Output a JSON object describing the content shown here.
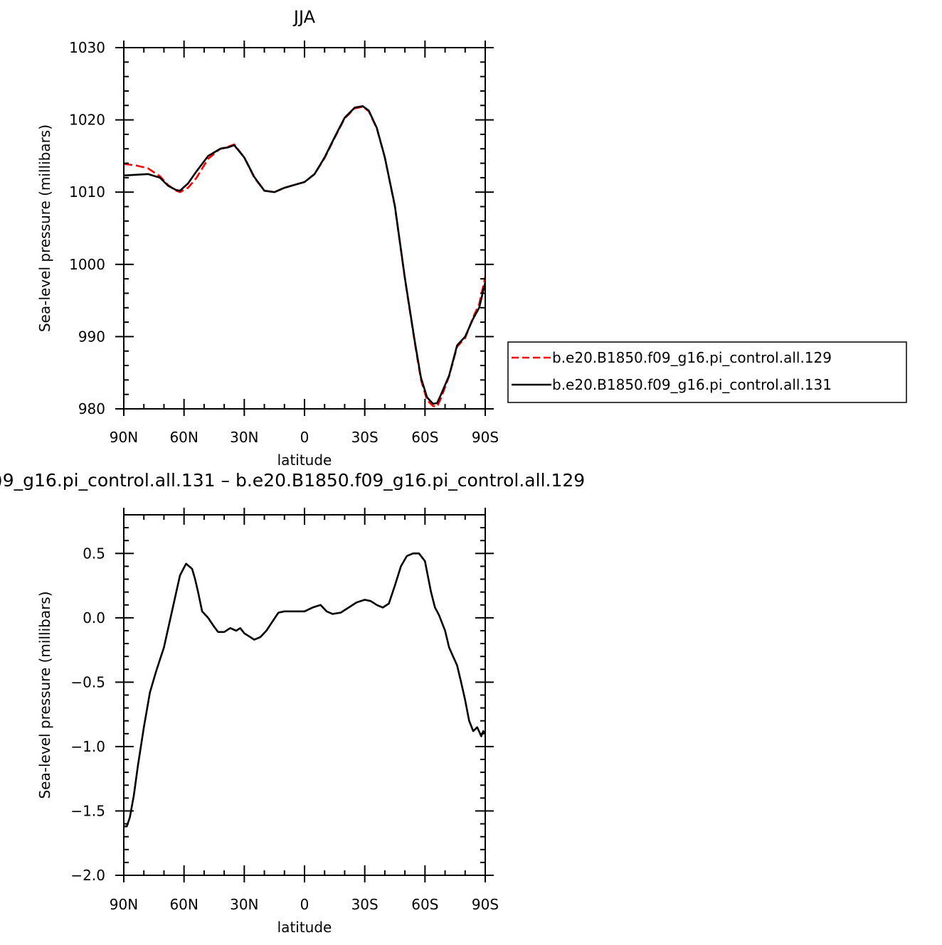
{
  "chart_data": [
    {
      "type": "line",
      "title": "JJA",
      "xlabel": "latitude",
      "ylabel": "Sea-level pressure (millibars)",
      "xlim": [
        90,
        -90
      ],
      "ylim": [
        980,
        1030
      ],
      "x_ticks": [
        {
          "value": 90,
          "label": "90N"
        },
        {
          "value": 60,
          "label": "60N"
        },
        {
          "value": 30,
          "label": "30N"
        },
        {
          "value": 0,
          "label": "0"
        },
        {
          "value": -30,
          "label": "30S"
        },
        {
          "value": -60,
          "label": "60S"
        },
        {
          "value": -90,
          "label": "90S"
        }
      ],
      "y_ticks": [
        {
          "value": 980,
          "label": "980"
        },
        {
          "value": 990,
          "label": "990"
        },
        {
          "value": 1000,
          "label": "1000"
        },
        {
          "value": 1010,
          "label": "1010"
        },
        {
          "value": 1020,
          "label": "1020"
        },
        {
          "value": 1030,
          "label": "1030"
        }
      ],
      "legend_position": "right",
      "series": [
        {
          "name": "b.e20.B1850.f09_g16.pi_control.all.129",
          "color": "#ff0000",
          "dash": "dashed",
          "x": [
            90,
            84,
            78,
            72,
            68,
            64,
            62,
            58,
            54,
            48,
            42,
            38,
            35,
            30,
            25,
            20,
            15,
            10,
            5,
            0,
            -5,
            -10,
            -15,
            -20,
            -25,
            -29,
            -32,
            -36,
            -40,
            -45,
            -50,
            -55,
            -58,
            -61,
            -64,
            -66,
            -68,
            -72,
            -76,
            -80,
            -84,
            -87,
            -90
          ],
          "y": [
            1013.9,
            1013.7,
            1013.3,
            1012.2,
            1011.0,
            1010.2,
            1010.0,
            1010.6,
            1011.9,
            1014.6,
            1016.0,
            1016.3,
            1016.6,
            1014.8,
            1012.0,
            1010.2,
            1010.0,
            1010.6,
            1011.0,
            1011.4,
            1012.5,
            1014.7,
            1017.5,
            1020.2,
            1021.6,
            1021.8,
            1021.2,
            1018.8,
            1014.8,
            1008.0,
            998.0,
            989.0,
            984.0,
            981.2,
            980.4,
            980.3,
            981.5,
            984.5,
            988.6,
            989.8,
            992.7,
            994.5,
            998.3
          ]
        },
        {
          "name": "b.e20.B1850.f09_g16.pi_control.all.131",
          "color": "#000000",
          "dash": "solid",
          "x": [
            90,
            84,
            78,
            72,
            68,
            64,
            62,
            58,
            54,
            48,
            42,
            38,
            35,
            30,
            25,
            20,
            15,
            10,
            5,
            0,
            -5,
            -10,
            -15,
            -20,
            -25,
            -29,
            -32,
            -36,
            -40,
            -45,
            -50,
            -55,
            -58,
            -61,
            -64,
            -66,
            -68,
            -72,
            -76,
            -80,
            -84,
            -87,
            -90
          ],
          "y": [
            1012.3,
            1012.4,
            1012.5,
            1012.0,
            1010.9,
            1010.3,
            1010.2,
            1011.2,
            1012.8,
            1015.0,
            1016.0,
            1016.2,
            1016.5,
            1014.8,
            1012.1,
            1010.2,
            1010.0,
            1010.6,
            1011.0,
            1011.4,
            1012.5,
            1014.8,
            1017.6,
            1020.3,
            1021.7,
            1021.9,
            1021.3,
            1018.9,
            1014.8,
            1008.1,
            998.1,
            989.2,
            984.3,
            981.6,
            980.7,
            980.8,
            982.0,
            984.6,
            988.8,
            990.0,
            992.5,
            994.0,
            997.5
          ]
        }
      ]
    },
    {
      "type": "line",
      "title": ")9_g16.pi_control.all.131 – b.e20.B1850.f09_g16.pi_control.all.129",
      "xlabel": "latitude",
      "ylabel": "Sea-level pressure (millibars)",
      "xlim": [
        90,
        -90
      ],
      "ylim": [
        -2.0,
        0.8
      ],
      "x_ticks": [
        {
          "value": 90,
          "label": "90N"
        },
        {
          "value": 60,
          "label": "60N"
        },
        {
          "value": 30,
          "label": "30N"
        },
        {
          "value": 0,
          "label": "0"
        },
        {
          "value": -30,
          "label": "30S"
        },
        {
          "value": -60,
          "label": "60S"
        },
        {
          "value": -90,
          "label": "90S"
        }
      ],
      "y_ticks": [
        {
          "value": -2.0,
          "label": "−2.0"
        },
        {
          "value": -1.5,
          "label": "−1.5"
        },
        {
          "value": -1.0,
          "label": "−1.0"
        },
        {
          "value": -0.5,
          "label": "−0.5"
        },
        {
          "value": 0.0,
          "label": "0.0"
        },
        {
          "value": 0.5,
          "label": "0.5"
        }
      ],
      "series": [
        {
          "color": "#000000",
          "dash": "solid",
          "x": [
            90,
            88.5,
            87,
            85,
            83,
            80,
            77,
            74,
            70,
            66,
            62,
            59,
            56,
            54.5,
            53,
            51,
            48,
            45,
            43,
            40,
            37,
            34,
            32,
            30,
            28,
            25,
            22,
            19,
            16,
            13,
            10,
            7,
            4,
            0,
            -4,
            -8,
            -11,
            -14,
            -18,
            -22,
            -26,
            -30,
            -33,
            -36,
            -39,
            -42,
            -45,
            -48,
            -51,
            -54,
            -57,
            -60,
            -63,
            -65,
            -67,
            -70,
            -72,
            -74,
            -76,
            -78,
            -80,
            -82,
            -84,
            -86,
            -88,
            -89,
            -90
          ],
          "y": [
            -1.62,
            -1.62,
            -1.55,
            -1.38,
            -1.15,
            -0.85,
            -0.58,
            -0.42,
            -0.23,
            0.05,
            0.33,
            0.42,
            0.38,
            0.3,
            0.2,
            0.05,
            0.0,
            -0.07,
            -0.11,
            -0.11,
            -0.08,
            -0.1,
            -0.08,
            -0.12,
            -0.14,
            -0.17,
            -0.15,
            -0.1,
            -0.03,
            0.04,
            0.05,
            0.05,
            0.05,
            0.05,
            0.08,
            0.1,
            0.05,
            0.03,
            0.04,
            0.08,
            0.12,
            0.14,
            0.13,
            0.1,
            0.08,
            0.11,
            0.25,
            0.4,
            0.48,
            0.5,
            0.5,
            0.44,
            0.2,
            0.08,
            0.02,
            -0.1,
            -0.23,
            -0.3,
            -0.37,
            -0.5,
            -0.64,
            -0.8,
            -0.88,
            -0.85,
            -0.92,
            -0.88,
            -0.9
          ]
        }
      ]
    }
  ]
}
